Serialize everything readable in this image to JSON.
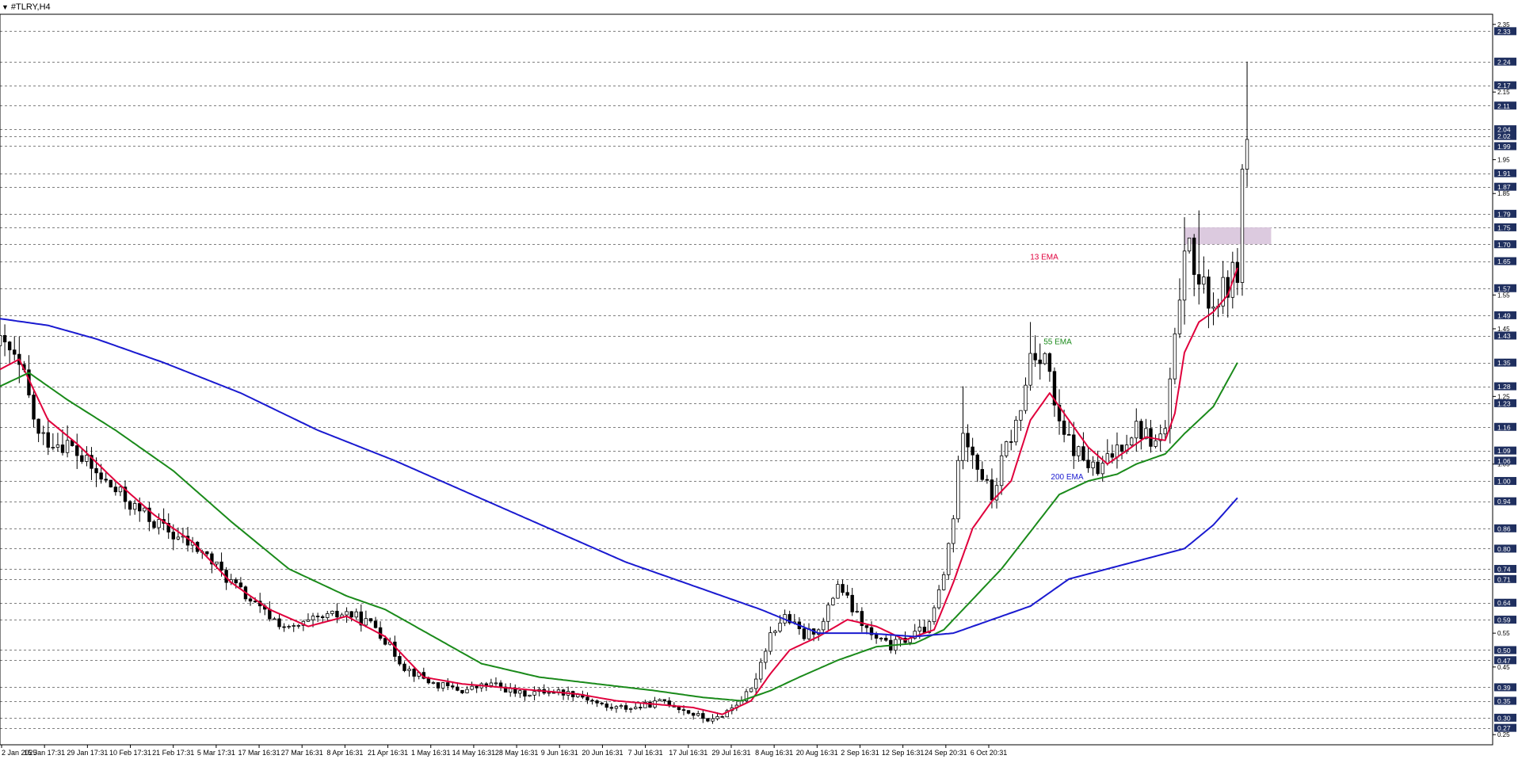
{
  "window": {
    "symbol_title": "#TLRY,H4"
  },
  "colors": {
    "background": "#ffffff",
    "candle": "#000000",
    "grid": "#000000",
    "ema13": "#e0003c",
    "ema55": "#1a8a1a",
    "ema200": "#1a1ad0",
    "zone": "#d8c4dc",
    "axis_label_bg": "#1f2f5f",
    "axis_label_text": "#ffffff"
  },
  "chart_data": {
    "type": "line",
    "title": "#TLRY,H4",
    "xlabel": "",
    "ylabel": "",
    "ylim": [
      0.22,
      2.38
    ],
    "grid": true,
    "price_axis": {
      "minor_ticks": [
        "2.35",
        "2.15",
        "1.95",
        "1.85",
        "1.55",
        "1.45",
        "1.25",
        "1.05",
        "0.55",
        "0.45",
        "0.25"
      ],
      "labeled_levels": [
        "2.33",
        "2.24",
        "2.17",
        "2.11",
        "2.04",
        "2.02",
        "1.99",
        "1.91",
        "1.87",
        "1.79",
        "1.75",
        "1.70",
        "1.65",
        "1.57",
        "1.49",
        "1.43",
        "1.35",
        "1.28",
        "1.23",
        "1.16",
        "1.09",
        "1.06",
        "1.00",
        "0.94",
        "0.86",
        "0.80",
        "0.74",
        "0.71",
        "0.64",
        "0.59",
        "0.50",
        "0.47",
        "0.39",
        "0.35",
        "0.30",
        "0.27"
      ]
    },
    "time_axis": [
      "2 Jan 2025",
      "15 Jan 17:31",
      "29 Jan 17:31",
      "10 Feb 17:31",
      "21 Feb 17:31",
      "5 Mar 17:31",
      "17 Mar 16:31",
      "27 Mar 16:31",
      "8 Apr 16:31",
      "21 Apr 16:31",
      "1 May 16:31",
      "14 May 16:31",
      "28 May 16:31",
      "9 Jun 16:31",
      "20 Jun 16:31",
      "7 Jul 16:31",
      "17 Jul 16:31",
      "29 Jul 16:31",
      "8 Aug 16:31",
      "20 Aug 16:31",
      "2 Sep 16:31",
      "12 Sep 16:31",
      "24 Sep 20:31",
      "6 Oct 20:31"
    ],
    "price_path": [
      {
        "t": 0,
        "v": 1.4
      },
      {
        "t": 2,
        "v": 1.38
      },
      {
        "t": 5,
        "v": 1.3
      },
      {
        "t": 8,
        "v": 1.13
      },
      {
        "t": 14,
        "v": 1.11
      },
      {
        "t": 20,
        "v": 1.02
      },
      {
        "t": 28,
        "v": 0.92
      },
      {
        "t": 36,
        "v": 0.84
      },
      {
        "t": 42,
        "v": 0.79
      },
      {
        "t": 48,
        "v": 0.7
      },
      {
        "t": 54,
        "v": 0.62
      },
      {
        "t": 60,
        "v": 0.56
      },
      {
        "t": 66,
        "v": 0.59
      },
      {
        "t": 72,
        "v": 0.61
      },
      {
        "t": 78,
        "v": 0.57
      },
      {
        "t": 84,
        "v": 0.45
      },
      {
        "t": 90,
        "v": 0.4
      },
      {
        "t": 96,
        "v": 0.38
      },
      {
        "t": 102,
        "v": 0.4
      },
      {
        "t": 108,
        "v": 0.37
      },
      {
        "t": 114,
        "v": 0.38
      },
      {
        "t": 120,
        "v": 0.37
      },
      {
        "t": 126,
        "v": 0.33
      },
      {
        "t": 132,
        "v": 0.33
      },
      {
        "t": 138,
        "v": 0.35
      },
      {
        "t": 144,
        "v": 0.31
      },
      {
        "t": 148,
        "v": 0.29
      },
      {
        "t": 152,
        "v": 0.33
      },
      {
        "t": 156,
        "v": 0.38
      },
      {
        "t": 160,
        "v": 0.55
      },
      {
        "t": 163,
        "v": 0.6
      },
      {
        "t": 167,
        "v": 0.54
      },
      {
        "t": 171,
        "v": 0.58
      },
      {
        "t": 174,
        "v": 0.7
      },
      {
        "t": 177,
        "v": 0.62
      },
      {
        "t": 181,
        "v": 0.54
      },
      {
        "t": 185,
        "v": 0.51
      },
      {
        "t": 189,
        "v": 0.54
      },
      {
        "t": 193,
        "v": 0.57
      },
      {
        "t": 196,
        "v": 0.72
      },
      {
        "t": 198,
        "v": 0.9
      },
      {
        "t": 200,
        "v": 1.17
      },
      {
        "t": 203,
        "v": 1.05
      },
      {
        "t": 206,
        "v": 0.95
      },
      {
        "t": 209,
        "v": 1.1
      },
      {
        "t": 212,
        "v": 1.2
      },
      {
        "t": 214,
        "v": 1.38
      },
      {
        "t": 217,
        "v": 1.38
      },
      {
        "t": 220,
        "v": 1.15
      },
      {
        "t": 224,
        "v": 1.08
      },
      {
        "t": 228,
        "v": 1.02
      },
      {
        "t": 232,
        "v": 1.1
      },
      {
        "t": 236,
        "v": 1.16
      },
      {
        "t": 240,
        "v": 1.11
      },
      {
        "t": 242,
        "v": 1.15
      },
      {
        "t": 244,
        "v": 1.4
      },
      {
        "t": 246,
        "v": 1.72
      },
      {
        "t": 249,
        "v": 1.58
      },
      {
        "t": 252,
        "v": 1.52
      },
      {
        "t": 255,
        "v": 1.58
      },
      {
        "t": 257,
        "v": 1.63
      },
      {
        "t": 258,
        "v": 1.9
      },
      {
        "t": 259,
        "v": 2.01
      }
    ],
    "series": [
      {
        "name": "13 EMA",
        "points": [
          {
            "t": 0,
            "v": 1.33
          },
          {
            "t": 4,
            "v": 1.36
          },
          {
            "t": 6,
            "v": 1.3
          },
          {
            "t": 10,
            "v": 1.18
          },
          {
            "t": 16,
            "v": 1.11
          },
          {
            "t": 24,
            "v": 1.0
          },
          {
            "t": 32,
            "v": 0.9
          },
          {
            "t": 40,
            "v": 0.82
          },
          {
            "t": 48,
            "v": 0.7
          },
          {
            "t": 56,
            "v": 0.62
          },
          {
            "t": 64,
            "v": 0.57
          },
          {
            "t": 72,
            "v": 0.6
          },
          {
            "t": 80,
            "v": 0.54
          },
          {
            "t": 88,
            "v": 0.42
          },
          {
            "t": 96,
            "v": 0.4
          },
          {
            "t": 104,
            "v": 0.39
          },
          {
            "t": 112,
            "v": 0.38
          },
          {
            "t": 120,
            "v": 0.37
          },
          {
            "t": 128,
            "v": 0.35
          },
          {
            "t": 136,
            "v": 0.34
          },
          {
            "t": 144,
            "v": 0.33
          },
          {
            "t": 150,
            "v": 0.31
          },
          {
            "t": 156,
            "v": 0.35
          },
          {
            "t": 160,
            "v": 0.43
          },
          {
            "t": 164,
            "v": 0.5
          },
          {
            "t": 170,
            "v": 0.54
          },
          {
            "t": 176,
            "v": 0.59
          },
          {
            "t": 182,
            "v": 0.57
          },
          {
            "t": 188,
            "v": 0.53
          },
          {
            "t": 194,
            "v": 0.56
          },
          {
            "t": 198,
            "v": 0.7
          },
          {
            "t": 202,
            "v": 0.86
          },
          {
            "t": 206,
            "v": 0.94
          },
          {
            "t": 210,
            "v": 1.0
          },
          {
            "t": 214,
            "v": 1.18
          },
          {
            "t": 218,
            "v": 1.26
          },
          {
            "t": 222,
            "v": 1.18
          },
          {
            "t": 226,
            "v": 1.1
          },
          {
            "t": 230,
            "v": 1.05
          },
          {
            "t": 234,
            "v": 1.09
          },
          {
            "t": 238,
            "v": 1.13
          },
          {
            "t": 242,
            "v": 1.12
          },
          {
            "t": 244,
            "v": 1.2
          },
          {
            "t": 246,
            "v": 1.38
          },
          {
            "t": 249,
            "v": 1.47
          },
          {
            "t": 252,
            "v": 1.5
          },
          {
            "t": 255,
            "v": 1.55
          },
          {
            "t": 257,
            "v": 1.63
          }
        ]
      },
      {
        "name": "55 EMA",
        "points": [
          {
            "t": 0,
            "v": 1.28
          },
          {
            "t": 6,
            "v": 1.32
          },
          {
            "t": 14,
            "v": 1.24
          },
          {
            "t": 24,
            "v": 1.15
          },
          {
            "t": 36,
            "v": 1.03
          },
          {
            "t": 48,
            "v": 0.88
          },
          {
            "t": 60,
            "v": 0.74
          },
          {
            "t": 72,
            "v": 0.66
          },
          {
            "t": 80,
            "v": 0.62
          },
          {
            "t": 90,
            "v": 0.54
          },
          {
            "t": 100,
            "v": 0.46
          },
          {
            "t": 112,
            "v": 0.42
          },
          {
            "t": 124,
            "v": 0.4
          },
          {
            "t": 136,
            "v": 0.38
          },
          {
            "t": 146,
            "v": 0.36
          },
          {
            "t": 154,
            "v": 0.35
          },
          {
            "t": 160,
            "v": 0.38
          },
          {
            "t": 166,
            "v": 0.42
          },
          {
            "t": 174,
            "v": 0.47
          },
          {
            "t": 182,
            "v": 0.51
          },
          {
            "t": 190,
            "v": 0.52
          },
          {
            "t": 196,
            "v": 0.56
          },
          {
            "t": 202,
            "v": 0.65
          },
          {
            "t": 208,
            "v": 0.74
          },
          {
            "t": 214,
            "v": 0.85
          },
          {
            "t": 220,
            "v": 0.96
          },
          {
            "t": 226,
            "v": 1.0
          },
          {
            "t": 232,
            "v": 1.02
          },
          {
            "t": 236,
            "v": 1.05
          },
          {
            "t": 242,
            "v": 1.08
          },
          {
            "t": 246,
            "v": 1.14
          },
          {
            "t": 252,
            "v": 1.22
          },
          {
            "t": 257,
            "v": 1.35
          }
        ]
      },
      {
        "name": "200 EMA",
        "points": [
          {
            "t": 0,
            "v": 1.48
          },
          {
            "t": 10,
            "v": 1.46
          },
          {
            "t": 20,
            "v": 1.42
          },
          {
            "t": 34,
            "v": 1.35
          },
          {
            "t": 50,
            "v": 1.26
          },
          {
            "t": 66,
            "v": 1.15
          },
          {
            "t": 82,
            "v": 1.06
          },
          {
            "t": 98,
            "v": 0.96
          },
          {
            "t": 114,
            "v": 0.86
          },
          {
            "t": 130,
            "v": 0.76
          },
          {
            "t": 146,
            "v": 0.68
          },
          {
            "t": 158,
            "v": 0.62
          },
          {
            "t": 170,
            "v": 0.55
          },
          {
            "t": 180,
            "v": 0.55
          },
          {
            "t": 190,
            "v": 0.54
          },
          {
            "t": 198,
            "v": 0.55
          },
          {
            "t": 206,
            "v": 0.59
          },
          {
            "t": 214,
            "v": 0.63
          },
          {
            "t": 222,
            "v": 0.71
          },
          {
            "t": 230,
            "v": 0.74
          },
          {
            "t": 238,
            "v": 0.77
          },
          {
            "t": 246,
            "v": 0.8
          },
          {
            "t": 252,
            "v": 0.87
          },
          {
            "t": 257,
            "v": 0.95
          }
        ]
      }
    ],
    "indicator_labels": [
      {
        "name": "13 EMA",
        "at_price": 1.65
      },
      {
        "name": "55 EMA",
        "at_price": 1.4
      },
      {
        "name": "200 EMA",
        "at_price": 1.0
      }
    ],
    "zones": [
      {
        "t_start": 246,
        "t_end": 264,
        "v_low": 1.7,
        "v_high": 1.75
      }
    ]
  }
}
